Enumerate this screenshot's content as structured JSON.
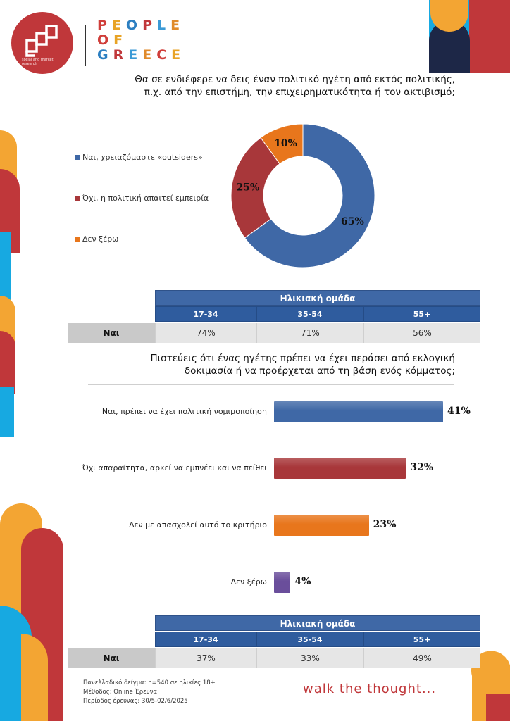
{
  "brand": {
    "logo_caption": "social and market research",
    "name_lines": [
      "PEOPLE",
      "OF",
      "GREECE"
    ],
    "letter_colors": [
      "#d03e3a",
      "#e8a325",
      "#2c7fc1",
      "#c0373a",
      "#3b9ad6",
      "#e08a2a"
    ]
  },
  "colors": {
    "blue": "#3f68a6",
    "red": "#a8373a",
    "orange": "#e8761c",
    "purple": "#6a4e9b",
    "deco_red": "#c0373a",
    "deco_orange": "#f3a533",
    "deco_blue": "#17a9e1",
    "deco_navy": "#1d2747"
  },
  "q1": {
    "title_line1": "Θα σε ενδιέφερε να δεις έναν πολιτικό ηγέτη από εκτός πολιτικής,",
    "title_line2": "π.χ. από την επιστήμη, την επιχειρηματικότητα ή τον ακτιβισμό;"
  },
  "q2": {
    "title_line1": "Πιστεύεις ότι ένας ηγέτης πρέπει να έχει περάσει από εκλογική",
    "title_line2": "δοκιμασία ή να προέρχεται από τη βάση ενός κόμματος;"
  },
  "table1": {
    "header": "Ηλικιακή ομάδα",
    "columns": [
      "17-34",
      "35-54",
      "55+"
    ],
    "row_label": "Ναι",
    "values": [
      "74%",
      "71%",
      "56%"
    ]
  },
  "table2": {
    "header": "Ηλικιακή ομάδα",
    "columns": [
      "17-34",
      "35-54",
      "55+"
    ],
    "row_label": "Ναι",
    "values": [
      "37%",
      "33%",
      "49%"
    ]
  },
  "chart_data": [
    {
      "type": "pie",
      "categories": [
        "Ναι, χρειαζόμαστε «outsiders»",
        "Όχι, η πολιτική απαιτεί εμπειρία",
        "Δεν ξέρω"
      ],
      "values": [
        65,
        25,
        10
      ],
      "labels": [
        "65%",
        "25%",
        "10%"
      ],
      "colors": [
        "#3f68a6",
        "#a8373a",
        "#e8761c"
      ],
      "donut": true,
      "legend": "left"
    },
    {
      "type": "bar",
      "orientation": "horizontal",
      "categories": [
        "Ναι, πρέπει να έχει πολιτική νομιμοποίηση",
        "Όχι απαραίτητα, αρκεί να εμπνέει και να πείθει",
        "Δεν με απασχολεί αυτό το κριτήριο",
        "Δεν ξέρω"
      ],
      "values": [
        41,
        32,
        23,
        4
      ],
      "labels": [
        "41%",
        "32%",
        "23%",
        "4%"
      ],
      "colors": [
        "#3f68a6",
        "#a8373a",
        "#e8761c",
        "#6a4e9b"
      ]
    }
  ],
  "footer": {
    "sample": "Πανελλαδικό δείγμα: n=540 σε ηλικίες 18+",
    "method": "Μέθοδος: Online Έρευνα",
    "period": "Περίοδος έρευνας: 30/5-02/6/2025",
    "slogan": "walk the thought..."
  }
}
